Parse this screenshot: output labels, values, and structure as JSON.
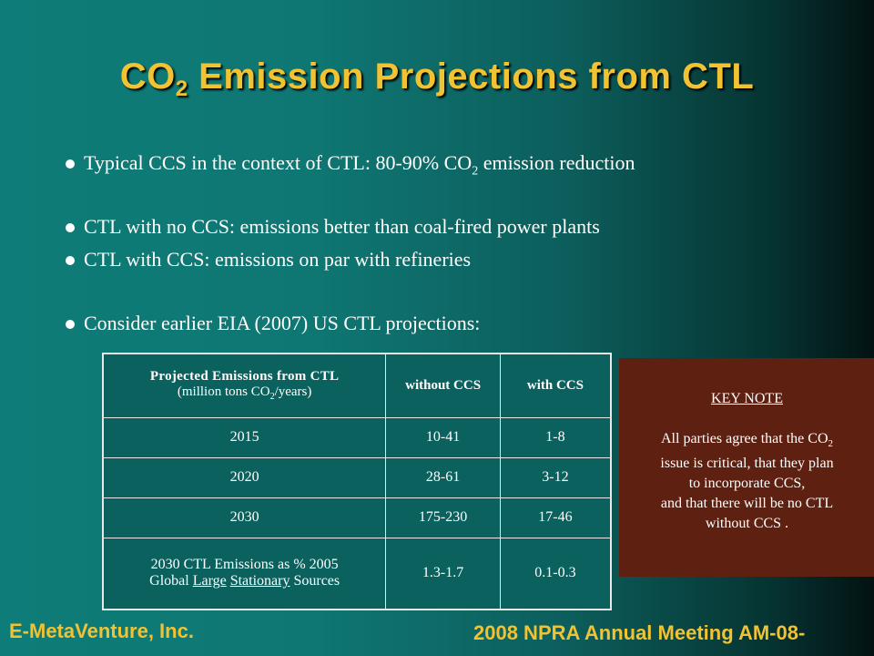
{
  "title": {
    "pre": "CO",
    "sub": "2",
    "post": " Emission Projections from CTL"
  },
  "bullets": [
    {
      "pre": "Typical CCS in the context of CTL:  80-90% CO",
      "sub": "2",
      "post": " emission reduction"
    },
    {
      "text": "CTL with no CCS:  emissions better than coal-fired power plants"
    },
    {
      "text": "CTL with CCS:  emissions on par with refineries"
    },
    {
      "text": "Consider earlier EIA (2007) US CTL projections:"
    }
  ],
  "table": {
    "header": {
      "col1_line1": "Projected Emissions from CTL",
      "col1_line2_pre": "(million tons CO",
      "col1_line2_sub": "2",
      "col1_line2_post": "/years)",
      "col2": "without CCS",
      "col3": "with CCS"
    },
    "rows": [
      {
        "year": "2015",
        "without": "10-41",
        "with": "1-8"
      },
      {
        "year": "2020",
        "without": "28-61",
        "with": "3-12"
      },
      {
        "year": "2030",
        "without": "175-230",
        "with": "17-46"
      }
    ],
    "last_row": {
      "line1": "2030 CTL Emissions as % 2005",
      "line2_a": "Global ",
      "line2_b": "Large",
      "line2_c": "Stationary",
      "line2_d": " Sources",
      "without": "1.3-1.7",
      "with": "0.1-0.3"
    }
  },
  "key_note": {
    "heading": "KEY NOTE",
    "line1_pre": "All parties agree that the CO",
    "line1_sub": "2",
    "line2": "issue is critical, that they plan",
    "line3": "to incorporate CCS,",
    "line4": "and that there will be no CTL",
    "line5": "without CCS ."
  },
  "footer": {
    "left": "E-MetaVenture, Inc.",
    "right": "2008 NPRA Annual Meeting AM-08-"
  },
  "colors": {
    "title": "#f1c232",
    "note_bg": "#5e2010"
  }
}
